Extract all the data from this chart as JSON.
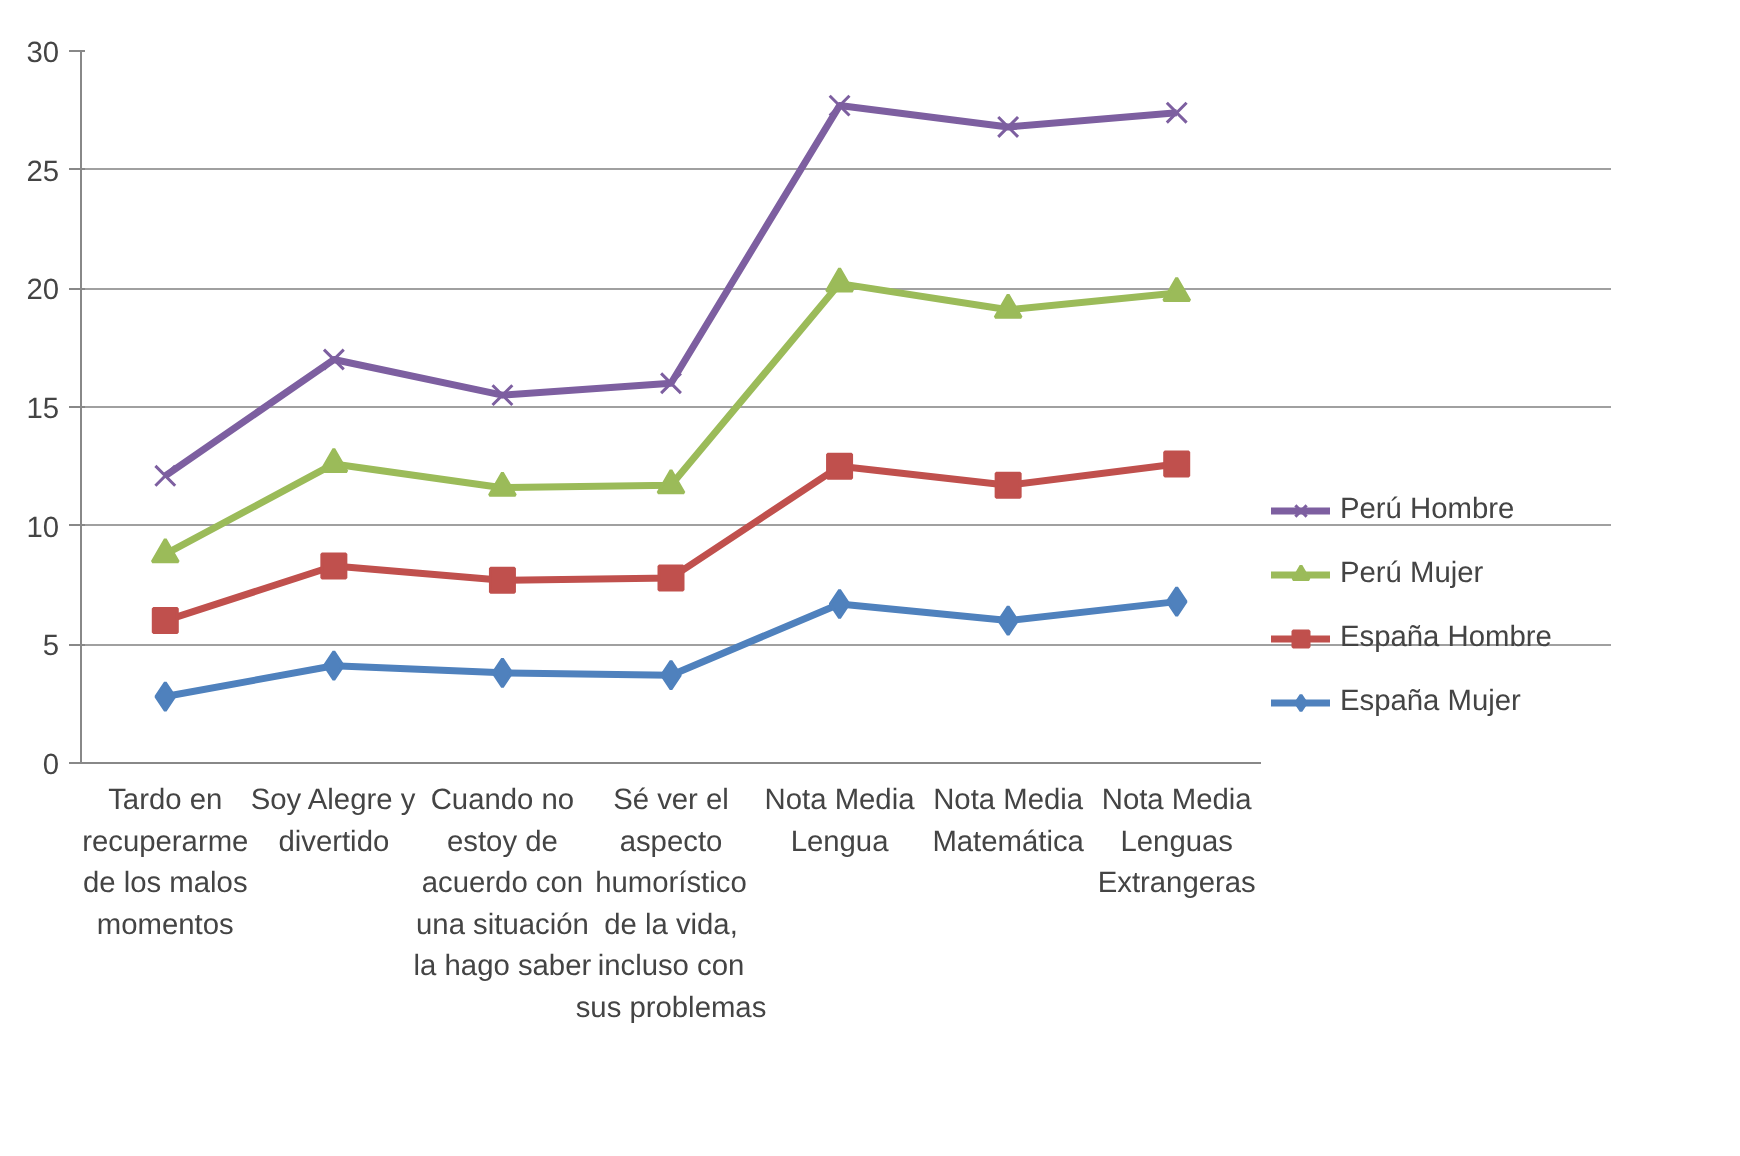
{
  "chart_data": {
    "type": "line",
    "categories": [
      "Tardo en recuperarme de los malos momentos",
      "Soy Alegre y divertido",
      "Cuando no estoy de acuerdo con una situación la hago saber",
      "Sé ver el aspecto humorístico de la vida, incluso con sus problemas",
      "Nota Media Lengua",
      "Nota Media Matemática",
      "Nota Media Lenguas Extrangeras"
    ],
    "series": [
      {
        "name": "Perú Hombre",
        "color": "#7d5fa0",
        "marker": "cross",
        "values": [
          12.1,
          17.0,
          15.5,
          16.0,
          27.7,
          26.8,
          27.4
        ]
      },
      {
        "name": "Perú Mujer",
        "color": "#9bbb59",
        "marker": "triangle",
        "values": [
          8.8,
          12.6,
          11.6,
          11.7,
          20.2,
          19.1,
          19.8
        ]
      },
      {
        "name": "España Hombre",
        "color": "#c0504d",
        "marker": "square",
        "values": [
          6.0,
          8.3,
          7.7,
          7.8,
          12.5,
          11.7,
          12.6
        ]
      },
      {
        "name": "España Mujer",
        "color": "#4f81bd",
        "marker": "diamond",
        "values": [
          2.8,
          4.1,
          3.8,
          3.7,
          6.7,
          6.0,
          6.8
        ]
      }
    ],
    "ylim": [
      0,
      30
    ],
    "yticks": [
      0,
      5,
      10,
      15,
      20,
      25,
      30
    ],
    "grid": "y",
    "legend": "right",
    "line_style": "solid"
  }
}
